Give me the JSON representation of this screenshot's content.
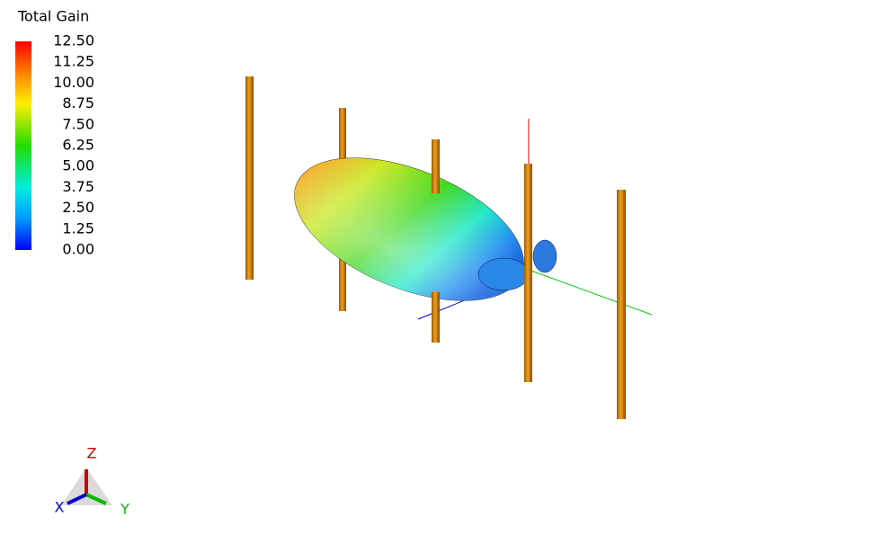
{
  "legend": {
    "title": "Total Gain",
    "ticks": [
      {
        "value": 12.5,
        "label": "12.50"
      },
      {
        "value": 11.25,
        "label": "11.25"
      },
      {
        "value": 10,
        "label": "10.00"
      },
      {
        "value": 8.75,
        "label": "8.75"
      },
      {
        "value": 7.5,
        "label": "7.50"
      },
      {
        "value": 6.25,
        "label": "6.25"
      },
      {
        "value": 5,
        "label": "5.00"
      },
      {
        "value": 3.75,
        "label": "3.75"
      },
      {
        "value": 2.5,
        "label": "2.50"
      },
      {
        "value": 1.25,
        "label": "1.25"
      },
      {
        "value": 0,
        "label": "0.00"
      }
    ]
  },
  "triad": {
    "x": "X",
    "y": "Y",
    "z": "Z"
  }
}
